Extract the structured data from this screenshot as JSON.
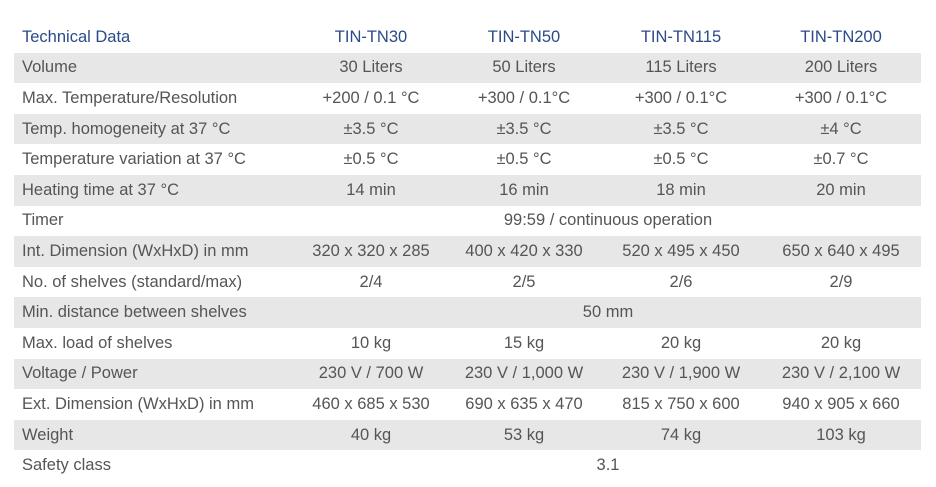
{
  "table": {
    "header": [
      "Technical Data",
      "TIN-TN30",
      "TIN-TN50",
      "TIN-TN115",
      "TIN-TN200"
    ],
    "rows": [
      [
        "Volume",
        "30 Liters",
        "50 Liters",
        "115 Liters",
        "200 Liters"
      ],
      [
        "Max. Temperature/Resolution",
        "+200 / 0.1 °C",
        "+300 / 0.1°C",
        "+300 / 0.1°C",
        "+300 / 0.1°C"
      ],
      [
        "Temp. homogeneity at 37 °C",
        "±3.5 °C",
        "±3.5 °C",
        "±3.5 °C",
        "±4 °C"
      ],
      [
        "Temperature variation at 37 °C",
        "±0.5 °C",
        "±0.5 °C",
        "±0.5 °C",
        "±0.7 °C"
      ],
      [
        "Heating time at 37 °C",
        "14 min",
        "16 min",
        "18 min",
        "20 min"
      ],
      [
        "Timer",
        "99:59 / continuous operation"
      ],
      [
        "Int. Dimension (WxHxD) in mm",
        "320 x 320 x 285",
        "400 x 420 x 330",
        "520 x 495 x 450",
        "650 x 640 x 495"
      ],
      [
        "No. of shelves (standard/max)",
        "2/4",
        "2/5",
        "2/6",
        "2/9"
      ],
      [
        "Min. distance between shelves",
        "50 mm"
      ],
      [
        "Max. load of shelves",
        "10 kg",
        "15 kg",
        "20 kg",
        "20 kg"
      ],
      [
        "Voltage / Power",
        "230 V / 700 W",
        "230 V / 1,000 W",
        "230 V / 1,900 W",
        "230 V / 2,100 W"
      ],
      [
        "Ext. Dimension (WxHxD) in mm",
        "460 x 685 x 530",
        "690 x 635 x 470",
        "815 x 750 x 600",
        "940 x 905 x 660"
      ],
      [
        "Weight",
        "40 kg",
        "53 kg",
        "74 kg",
        "103 kg"
      ],
      [
        "Safety class",
        "3.1"
      ]
    ]
  }
}
